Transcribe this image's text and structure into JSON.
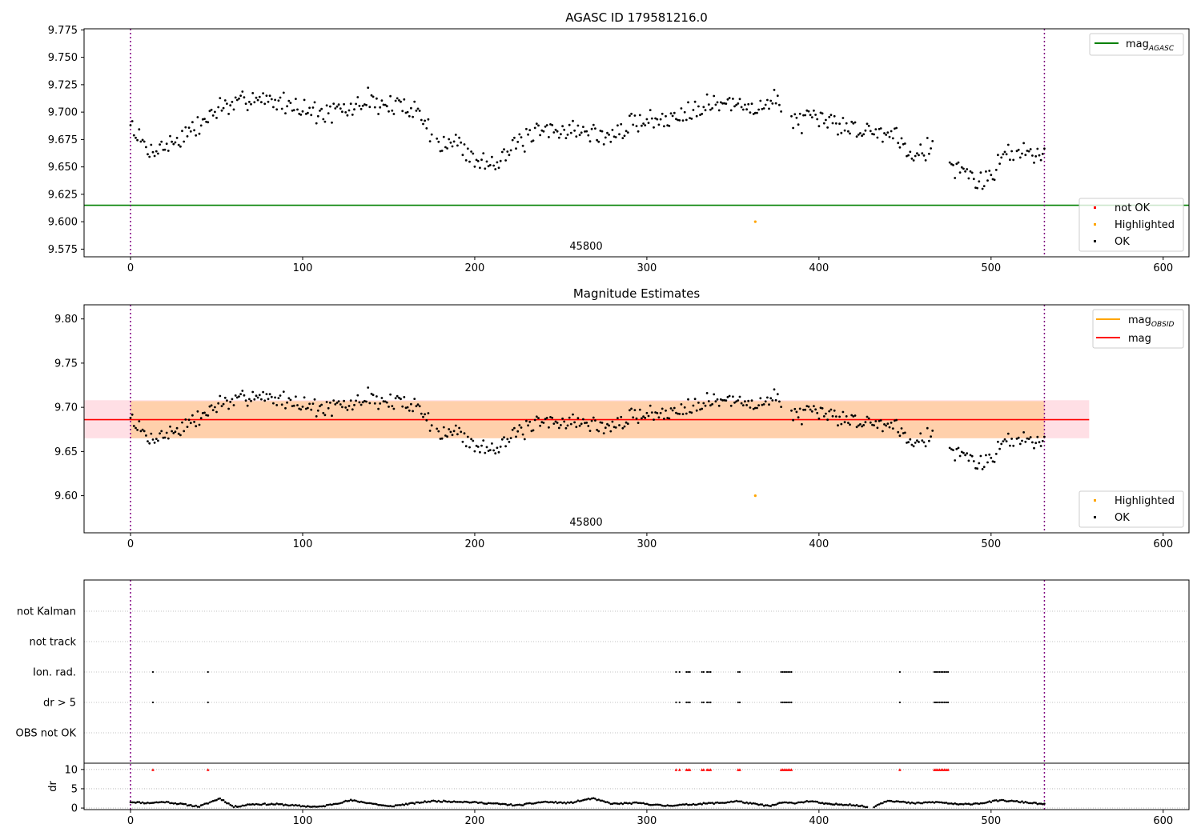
{
  "chart_data": [
    {
      "type": "scatter",
      "title": "AGASC ID 179581216.0",
      "obsid_label": "45800",
      "xlim": [
        -27,
        615
      ],
      "ylim": [
        9.568,
        9.776
      ],
      "xticks": [
        0,
        100,
        200,
        300,
        400,
        500,
        600
      ],
      "yticks": [
        9.575,
        9.6,
        9.625,
        9.65,
        9.675,
        9.7,
        9.725,
        9.75,
        9.775
      ],
      "ytick_labels": [
        "9.575",
        "9.600",
        "9.625",
        "9.650",
        "9.675",
        "9.700",
        "9.725",
        "9.750",
        "9.775"
      ],
      "mag_agasc": 9.615,
      "vlines": [
        0,
        531
      ],
      "highlighted": {
        "x": 363,
        "y": 9.6
      },
      "legend_lines": [
        {
          "label": "mag",
          "sub": "AGASC",
          "color": "#008000"
        }
      ],
      "legend_points": [
        {
          "label": "not OK",
          "color": "#ff0000"
        },
        {
          "label": "Highlighted",
          "color": "#ffa500"
        },
        {
          "label": "OK",
          "color": "#000000"
        }
      ],
      "anchors": [
        [
          0,
          9.69
        ],
        [
          5,
          9.676
        ],
        [
          10,
          9.664
        ],
        [
          16,
          9.668
        ],
        [
          22,
          9.67
        ],
        [
          30,
          9.678
        ],
        [
          38,
          9.685
        ],
        [
          45,
          9.695
        ],
        [
          52,
          9.705
        ],
        [
          60,
          9.704
        ],
        [
          70,
          9.715
        ],
        [
          80,
          9.71
        ],
        [
          90,
          9.708
        ],
        [
          100,
          9.705
        ],
        [
          110,
          9.698
        ],
        [
          120,
          9.7
        ],
        [
          130,
          9.703
        ],
        [
          138,
          9.713
        ],
        [
          145,
          9.706
        ],
        [
          155,
          9.705
        ],
        [
          165,
          9.705
        ],
        [
          172,
          9.688
        ],
        [
          180,
          9.668
        ],
        [
          190,
          9.673
        ],
        [
          200,
          9.655
        ],
        [
          210,
          9.655
        ],
        [
          220,
          9.665
        ],
        [
          230,
          9.675
        ],
        [
          240,
          9.682
        ],
        [
          250,
          9.685
        ],
        [
          260,
          9.683
        ],
        [
          270,
          9.68
        ],
        [
          280,
          9.677
        ],
        [
          290,
          9.688
        ],
        [
          300,
          9.695
        ],
        [
          310,
          9.69
        ],
        [
          320,
          9.7
        ],
        [
          330,
          9.706
        ],
        [
          340,
          9.708
        ],
        [
          350,
          9.706
        ],
        [
          360,
          9.705
        ],
        [
          370,
          9.705
        ],
        [
          375,
          9.712
        ],
        [
          385,
          9.692
        ],
        [
          395,
          9.692
        ],
        [
          405,
          9.692
        ],
        [
          415,
          9.688
        ],
        [
          425,
          9.683
        ],
        [
          435,
          9.682
        ],
        [
          445,
          9.68
        ],
        [
          452,
          9.665
        ],
        [
          460,
          9.666
        ],
        [
          467,
          9.668
        ],
        [
          478,
          9.65
        ],
        [
          485,
          9.645
        ],
        [
          492,
          9.637
        ],
        [
          500,
          9.64
        ],
        [
          505,
          9.655
        ],
        [
          512,
          9.667
        ],
        [
          520,
          9.662
        ],
        [
          531,
          9.665
        ]
      ],
      "seed": 7,
      "noise": 0.0085
    },
    {
      "type": "scatter",
      "title": "Magnitude Estimates",
      "obsid_label": "45800",
      "xlim": [
        -27,
        615
      ],
      "ylim": [
        9.558,
        9.816
      ],
      "xticks": [
        0,
        100,
        200,
        300,
        400,
        500,
        600
      ],
      "yticks": [
        9.6,
        9.65,
        9.7,
        9.75,
        9.8
      ],
      "ytick_labels": [
        "9.60",
        "9.65",
        "9.70",
        "9.75",
        "9.80"
      ],
      "mag": 9.686,
      "band_inner": [
        9.665,
        9.707
      ],
      "band_outer": [
        9.665,
        9.708
      ],
      "band_xrange": [
        -27,
        557
      ],
      "vlines": [
        0,
        531
      ],
      "highlighted": {
        "x": 363,
        "y": 9.6
      },
      "legend_lines": [
        {
          "label": "mag",
          "sub": "OBSID",
          "color": "#ffa500"
        },
        {
          "label": "mag",
          "sub": "",
          "color": "#ff0000"
        }
      ],
      "legend_points": [
        {
          "label": "Highlighted",
          "color": "#ffa500"
        },
        {
          "label": "OK",
          "color": "#000000"
        }
      ],
      "seed": 7,
      "noise": 0.0085
    },
    {
      "type": "scatter",
      "xlim": [
        -27,
        615
      ],
      "xticks": [
        0,
        100,
        200,
        300,
        400,
        500,
        600
      ],
      "flag_rows": [
        "not Kalman",
        "not track",
        "Ion. rad.",
        "dr > 5",
        "OBS not OK"
      ],
      "flag_points": [
        13,
        45,
        317,
        319,
        323,
        324,
        325,
        332,
        333,
        335,
        336,
        337,
        353,
        354,
        378,
        379,
        380,
        381,
        382,
        383,
        384,
        447,
        467,
        468,
        469,
        470,
        471,
        472,
        473,
        474,
        475
      ],
      "dr_label": "dr",
      "dr_ylim": [
        -0.4,
        11
      ],
      "dr_yticks": [
        0,
        5,
        10
      ],
      "dr_ytick_labels": [
        "0",
        "5",
        "10"
      ],
      "dr_anchors": [
        [
          0,
          1.6
        ],
        [
          10,
          1.3
        ],
        [
          20,
          1.6
        ],
        [
          30,
          1.0
        ],
        [
          40,
          0.4
        ],
        [
          45,
          1.3
        ],
        [
          52,
          2.5
        ],
        [
          60,
          0.3
        ],
        [
          70,
          1.0
        ],
        [
          85,
          1.0
        ],
        [
          100,
          0.5
        ],
        [
          110,
          0.3
        ],
        [
          128,
          2.0
        ],
        [
          140,
          1.2
        ],
        [
          150,
          0.4
        ],
        [
          160,
          1.0
        ],
        [
          175,
          1.8
        ],
        [
          190,
          1.7
        ],
        [
          210,
          1.2
        ],
        [
          225,
          0.7
        ],
        [
          240,
          1.6
        ],
        [
          255,
          1.3
        ],
        [
          268,
          2.5
        ],
        [
          280,
          1.1
        ],
        [
          295,
          1.3
        ],
        [
          310,
          0.6
        ],
        [
          320,
          0.8
        ],
        [
          335,
          1.2
        ],
        [
          345,
          1.4
        ],
        [
          352,
          1.8
        ],
        [
          360,
          1.2
        ],
        [
          372,
          0.5
        ],
        [
          378,
          1.4
        ],
        [
          385,
          1.3
        ],
        [
          395,
          1.8
        ],
        [
          405,
          1.0
        ],
        [
          418,
          0.9
        ],
        [
          428,
          0.3
        ],
        [
          432,
          0.4
        ],
        [
          440,
          2.0
        ],
        [
          455,
          1.2
        ],
        [
          465,
          1.5
        ],
        [
          470,
          1.5
        ],
        [
          482,
          0.9
        ],
        [
          495,
          1.3
        ],
        [
          505,
          2.0
        ],
        [
          515,
          1.7
        ],
        [
          531,
          1.0
        ]
      ],
      "vlines": [
        0,
        531
      ]
    }
  ]
}
